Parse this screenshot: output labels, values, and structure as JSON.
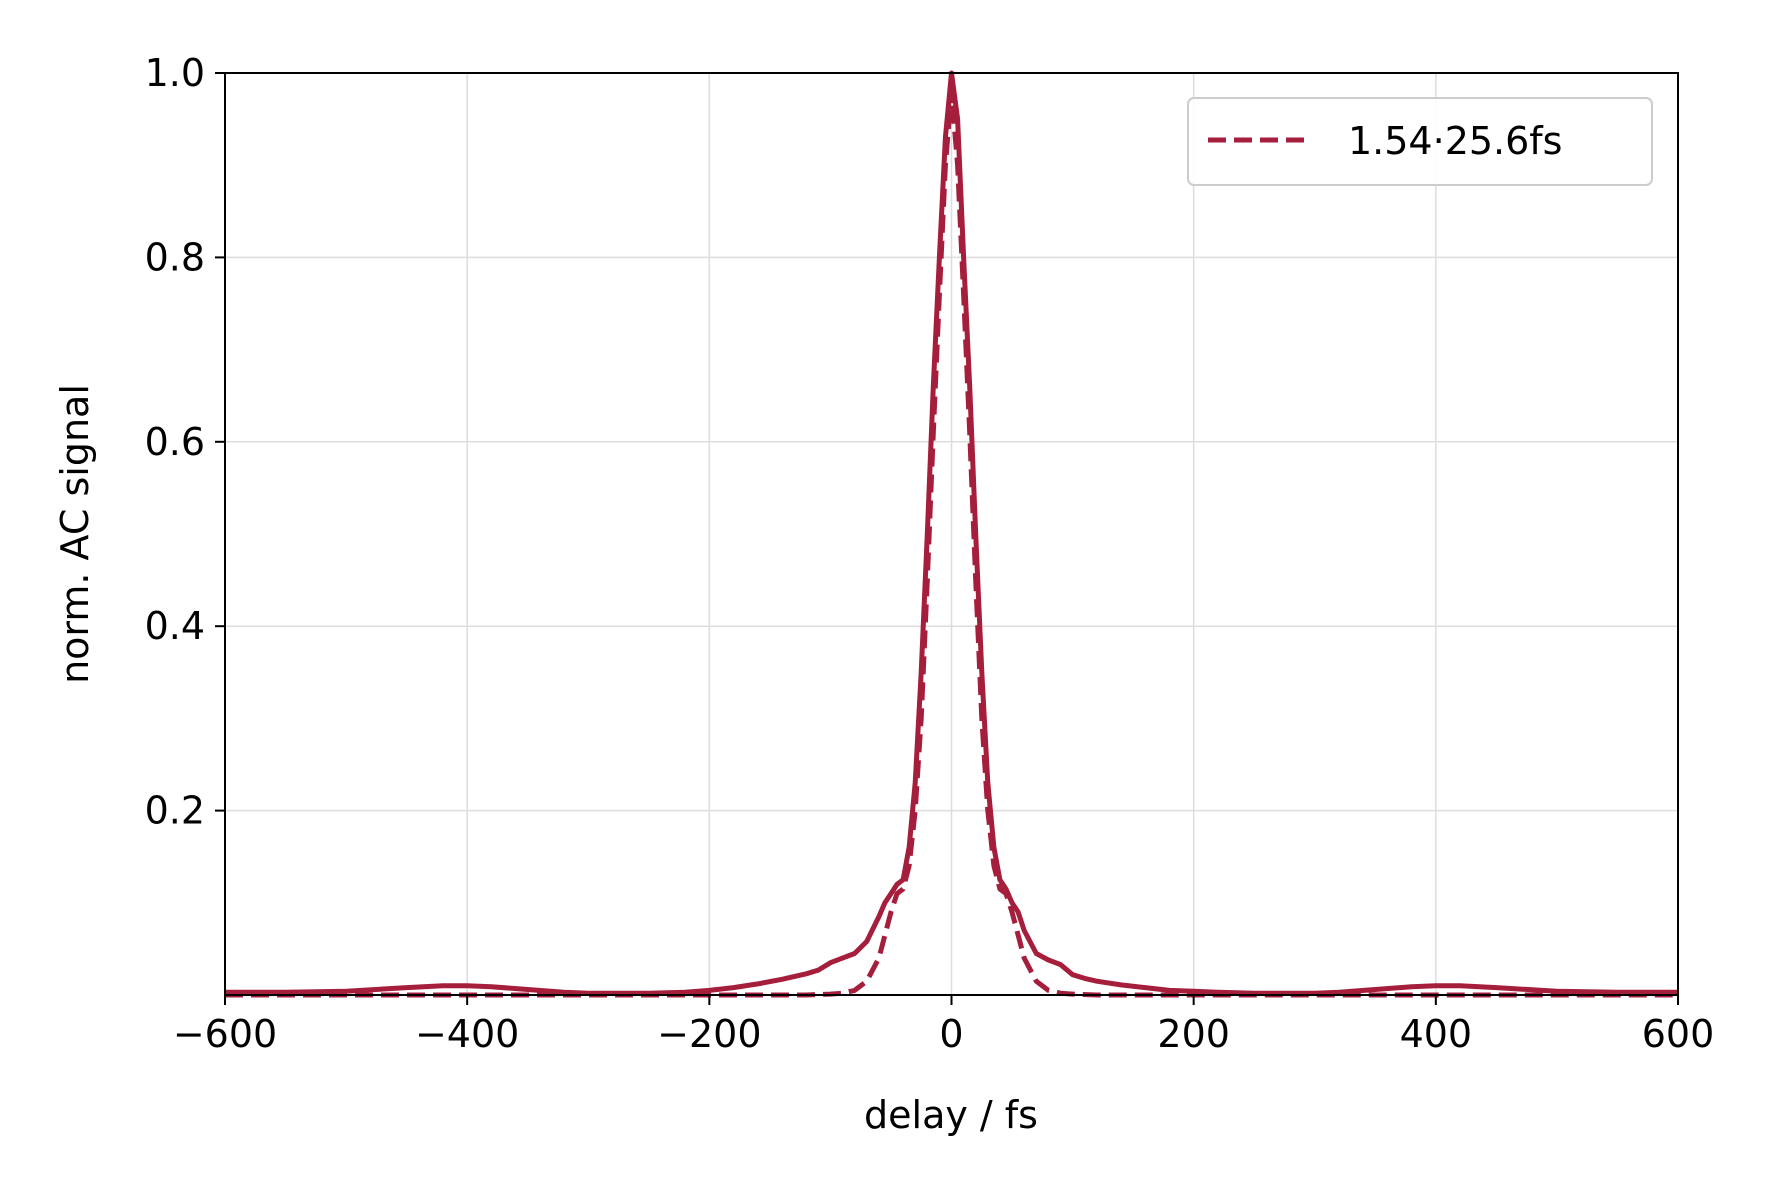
{
  "chart_data": {
    "type": "line",
    "xlabel": "delay / fs",
    "ylabel": "norm. AC signal",
    "xlim": [
      -600,
      600
    ],
    "ylim": [
      0,
      1.0
    ],
    "xticks": [
      -600,
      -400,
      -200,
      0,
      200,
      400,
      600
    ],
    "xtick_labels": [
      "−600",
      "−400",
      "−200",
      "0",
      "200",
      "400",
      "600"
    ],
    "yticks": [
      0.2,
      0.4,
      0.6,
      0.8,
      1.0
    ],
    "ytick_labels": [
      "0.2",
      "0.4",
      "0.6",
      "0.8",
      "1.0"
    ],
    "grid": true,
    "legend_position": "top-right",
    "color": "#a51e3c",
    "series": [
      {
        "style": "solid",
        "x": [
          -600,
          -550,
          -500,
          -450,
          -420,
          -400,
          -380,
          -350,
          -320,
          -300,
          -280,
          -250,
          -220,
          -200,
          -180,
          -160,
          -140,
          -120,
          -110,
          -100,
          -90,
          -80,
          -70,
          -60,
          -55,
          -50,
          -45,
          -40,
          -35,
          -30,
          -25,
          -20,
          -15,
          -10,
          -5,
          0,
          5,
          10,
          15,
          20,
          25,
          30,
          35,
          40,
          45,
          50,
          55,
          60,
          70,
          80,
          90,
          100,
          110,
          120,
          140,
          160,
          180,
          200,
          220,
          250,
          280,
          300,
          320,
          350,
          380,
          400,
          420,
          450,
          500,
          550,
          600
        ],
        "y": [
          0.003,
          0.003,
          0.004,
          0.008,
          0.01,
          0.01,
          0.009,
          0.006,
          0.003,
          0.002,
          0.002,
          0.002,
          0.003,
          0.005,
          0.008,
          0.012,
          0.017,
          0.023,
          0.027,
          0.035,
          0.04,
          0.045,
          0.058,
          0.085,
          0.1,
          0.11,
          0.12,
          0.125,
          0.16,
          0.23,
          0.35,
          0.5,
          0.66,
          0.8,
          0.93,
          1.0,
          0.95,
          0.8,
          0.66,
          0.5,
          0.35,
          0.23,
          0.16,
          0.125,
          0.115,
          0.1,
          0.09,
          0.07,
          0.045,
          0.038,
          0.033,
          0.022,
          0.018,
          0.015,
          0.011,
          0.008,
          0.005,
          0.004,
          0.003,
          0.002,
          0.002,
          0.002,
          0.003,
          0.006,
          0.009,
          0.01,
          0.01,
          0.008,
          0.004,
          0.003,
          0.003
        ]
      },
      {
        "name": "1.54·25.6fs",
        "style": "dashed",
        "x": [
          -600,
          -120,
          -100,
          -90,
          -80,
          -70,
          -60,
          -50,
          -45,
          -40,
          -35,
          -30,
          -25,
          -20,
          -15,
          -10,
          -5,
          0,
          5,
          10,
          15,
          20,
          25,
          30,
          35,
          40,
          45,
          50,
          60,
          70,
          80,
          90,
          100,
          120,
          600
        ],
        "y": [
          0.0,
          0.0,
          0.001,
          0.002,
          0.005,
          0.015,
          0.04,
          0.09,
          0.11,
          0.115,
          0.14,
          0.2,
          0.3,
          0.45,
          0.61,
          0.76,
          0.9,
          0.98,
          0.9,
          0.76,
          0.61,
          0.45,
          0.3,
          0.2,
          0.14,
          0.115,
          0.11,
          0.09,
          0.04,
          0.015,
          0.005,
          0.002,
          0.001,
          0.0,
          0.0
        ]
      }
    ]
  }
}
